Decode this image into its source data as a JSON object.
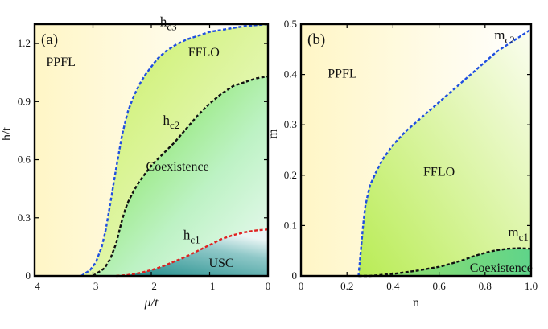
{
  "chart_data": [
    {
      "type": "area",
      "panel_label": "(a)",
      "xlabel": "μ/t",
      "ylabel": "h/t",
      "xlim": [
        -4,
        0
      ],
      "ylim": [
        0,
        1.3
      ],
      "x_ticks": [
        -4,
        -3,
        -2,
        -1,
        0
      ],
      "x_tick_labels": [
        "−4",
        "−3",
        "−2",
        "−1",
        "0"
      ],
      "y_ticks": [
        0,
        0.3,
        0.6,
        0.9,
        1.2
      ],
      "y_tick_labels": [
        "0",
        "0.3",
        "0.6",
        "0.9",
        "1.2"
      ],
      "regions": [
        {
          "name": "PPFL",
          "x": -3.55,
          "y": 1.1
        },
        {
          "name": "FFLO",
          "x": -1.1,
          "y": 1.15
        },
        {
          "name": "Coexistence",
          "x": -1.55,
          "y": 0.56
        },
        {
          "name": "USC",
          "x": -0.8,
          "y": 0.06
        }
      ],
      "series": [
        {
          "name": "h",
          "subscript": "c3",
          "color": "#1f4fe0",
          "label_at": [
            -1.85,
            1.29
          ],
          "x": [
            -3.2,
            -3.05,
            -2.95,
            -2.85,
            -2.78,
            -2.7,
            -2.6,
            -2.5,
            -2.4,
            -2.3,
            -2.2,
            -2.1,
            -2.0,
            -1.9,
            -1.75,
            -1.6,
            -1.4,
            -1.2,
            -1.0,
            -0.8,
            -0.6,
            -0.4,
            -0.2,
            0.0
          ],
          "y": [
            0.0,
            0.03,
            0.07,
            0.15,
            0.24,
            0.38,
            0.56,
            0.73,
            0.85,
            0.93,
            0.99,
            1.04,
            1.08,
            1.12,
            1.16,
            1.19,
            1.22,
            1.24,
            1.26,
            1.27,
            1.28,
            1.29,
            1.295,
            1.3
          ]
        },
        {
          "name": "h",
          "subscript": "c2",
          "color": "#111111",
          "label_at": [
            -1.8,
            0.78
          ],
          "x": [
            -3.0,
            -2.8,
            -2.7,
            -2.6,
            -2.55,
            -2.5,
            -2.45,
            -2.4,
            -2.3,
            -2.2,
            -2.1,
            -2.0,
            -1.8,
            -1.6,
            -1.4,
            -1.2,
            -1.0,
            -0.8,
            -0.6,
            -0.4,
            -0.2,
            0.0
          ],
          "y": [
            0.0,
            0.04,
            0.09,
            0.17,
            0.23,
            0.29,
            0.34,
            0.38,
            0.44,
            0.49,
            0.53,
            0.57,
            0.63,
            0.69,
            0.76,
            0.83,
            0.89,
            0.94,
            0.98,
            1.0,
            1.02,
            1.03
          ]
        },
        {
          "name": "h",
          "subscript": "c1",
          "color": "#e02020",
          "label_at": [
            -1.45,
            0.19
          ],
          "x": [
            -2.6,
            -2.4,
            -2.2,
            -2.0,
            -1.8,
            -1.6,
            -1.4,
            -1.2,
            -1.0,
            -0.8,
            -0.6,
            -0.4,
            -0.2,
            0.0
          ],
          "y": [
            0.0,
            0.005,
            0.015,
            0.03,
            0.05,
            0.075,
            0.1,
            0.13,
            0.16,
            0.19,
            0.21,
            0.225,
            0.235,
            0.24
          ]
        }
      ]
    },
    {
      "type": "area",
      "panel_label": "(b)",
      "xlabel": "n",
      "ylabel": "m",
      "xlim": [
        0,
        1.0
      ],
      "ylim": [
        0,
        0.5
      ],
      "x_ticks": [
        0,
        0.2,
        0.4,
        0.6,
        0.8,
        1.0
      ],
      "x_tick_labels": [
        "0",
        "0.2",
        "0.4",
        "0.6",
        "0.8",
        "1.0"
      ],
      "y_ticks": [
        0,
        0.1,
        0.2,
        0.3,
        0.4,
        0.5
      ],
      "y_tick_labels": [
        "0",
        "0.1",
        "0.2",
        "0.3",
        "0.4",
        "0.5"
      ],
      "regions": [
        {
          "name": "PPFL",
          "x": 0.18,
          "y": 0.4
        },
        {
          "name": "FFLO",
          "x": 0.6,
          "y": 0.205
        },
        {
          "name": "Coexistence",
          "x": 0.87,
          "y": 0.014
        }
      ],
      "series": [
        {
          "name": "m",
          "subscript": "c2",
          "color": "#1f4fe0",
          "label_at": [
            0.84,
            0.47
          ],
          "x": [
            0.25,
            0.26,
            0.27,
            0.28,
            0.3,
            0.33,
            0.36,
            0.4,
            0.45,
            0.5,
            0.55,
            0.6,
            0.65,
            0.7,
            0.75,
            0.8,
            0.85,
            0.9,
            0.95,
            1.0
          ],
          "y": [
            0.0,
            0.05,
            0.1,
            0.14,
            0.18,
            0.21,
            0.235,
            0.26,
            0.285,
            0.305,
            0.325,
            0.345,
            0.365,
            0.385,
            0.405,
            0.425,
            0.445,
            0.46,
            0.475,
            0.49
          ]
        },
        {
          "name": "m",
          "subscript": "c1",
          "color": "#111111",
          "label_at": [
            0.9,
            0.078
          ],
          "x": [
            0.25,
            0.3,
            0.35,
            0.4,
            0.45,
            0.5,
            0.55,
            0.6,
            0.65,
            0.7,
            0.75,
            0.8,
            0.85,
            0.9,
            0.95,
            1.0
          ],
          "y": [
            0.0,
            0.0,
            0.002,
            0.004,
            0.007,
            0.01,
            0.014,
            0.018,
            0.024,
            0.031,
            0.039,
            0.046,
            0.051,
            0.054,
            0.055,
            0.054
          ]
        }
      ]
    }
  ]
}
